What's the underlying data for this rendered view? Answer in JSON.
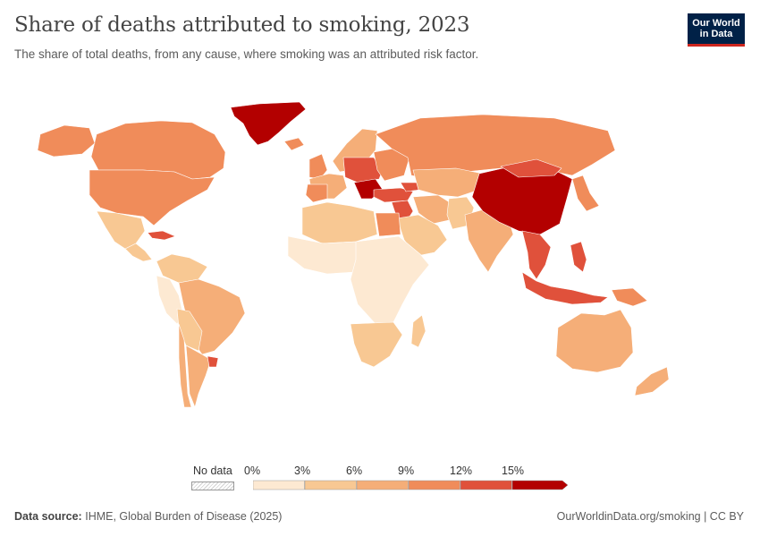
{
  "header": {
    "title": "Share of deaths attributed to smoking, 2023",
    "subtitle": "The share of total deaths, from any cause, where smoking was an attributed risk factor.",
    "logo_line1": "Our World",
    "logo_line2": "in Data"
  },
  "legend": {
    "no_data_label": "No data",
    "ticks": [
      "0%",
      "3%",
      "6%",
      "9%",
      "12%",
      "15%"
    ],
    "bins": [
      {
        "color": "#fde9d2"
      },
      {
        "color": "#f8c893"
      },
      {
        "color": "#f5ae78"
      },
      {
        "color": "#f08c5a"
      },
      {
        "color": "#e0513b"
      },
      {
        "color": "#b30000"
      }
    ]
  },
  "footer": {
    "source_label": "Data source:",
    "source_text": "IHME, Global Burden of Disease (2025)",
    "right_text": "OurWorldinData.org/smoking | CC BY"
  },
  "map_regions": [
    {
      "name": "greenland",
      "color": "#b30000"
    },
    {
      "name": "canada",
      "color": "#f08c5a"
    },
    {
      "name": "usa",
      "color": "#f08c5a"
    },
    {
      "name": "alaska",
      "color": "#f08c5a"
    },
    {
      "name": "mexico",
      "color": "#f8c893"
    },
    {
      "name": "central-america",
      "color": "#f8c893"
    },
    {
      "name": "cuba",
      "color": "#e0513b"
    },
    {
      "name": "colombia-venezuela",
      "color": "#f8c893"
    },
    {
      "name": "peru-ecuador",
      "color": "#fde9d2"
    },
    {
      "name": "brazil",
      "color": "#f5ae78"
    },
    {
      "name": "bolivia-paraguay",
      "color": "#f8c893"
    },
    {
      "name": "chile",
      "color": "#f5ae78"
    },
    {
      "name": "argentina",
      "color": "#f5ae78"
    },
    {
      "name": "uruguay",
      "color": "#e0513b"
    },
    {
      "name": "iceland",
      "color": "#f08c5a"
    },
    {
      "name": "scandinavia",
      "color": "#f5ae78"
    },
    {
      "name": "uk-ireland",
      "color": "#f08c5a"
    },
    {
      "name": "western-europe",
      "color": "#f5ae78"
    },
    {
      "name": "iberia",
      "color": "#f08c5a"
    },
    {
      "name": "central-europe",
      "color": "#e0513b"
    },
    {
      "name": "balkans",
      "color": "#b30000"
    },
    {
      "name": "eastern-europe",
      "color": "#f08c5a"
    },
    {
      "name": "russia",
      "color": "#f08c5a"
    },
    {
      "name": "turkey",
      "color": "#e0513b"
    },
    {
      "name": "levant",
      "color": "#e0513b"
    },
    {
      "name": "caucasus",
      "color": "#e0513b"
    },
    {
      "name": "kazakhstan-central-asia",
      "color": "#f5ae78"
    },
    {
      "name": "iran",
      "color": "#f5ae78"
    },
    {
      "name": "afghanistan-pakistan",
      "color": "#f8c893"
    },
    {
      "name": "arabia",
      "color": "#f8c893"
    },
    {
      "name": "north-africa",
      "color": "#f8c893"
    },
    {
      "name": "egypt",
      "color": "#f08c5a"
    },
    {
      "name": "west-africa",
      "color": "#fde9d2"
    },
    {
      "name": "central-east-africa",
      "color": "#fde9d2"
    },
    {
      "name": "southern-africa",
      "color": "#f8c893"
    },
    {
      "name": "madagascar",
      "color": "#f8c893"
    },
    {
      "name": "india",
      "color": "#f5ae78"
    },
    {
      "name": "china",
      "color": "#b30000"
    },
    {
      "name": "mongolia",
      "color": "#e0513b"
    },
    {
      "name": "korea-japan",
      "color": "#f08c5a"
    },
    {
      "name": "southeast-asia",
      "color": "#e0513b"
    },
    {
      "name": "philippines",
      "color": "#e0513b"
    },
    {
      "name": "indonesia",
      "color": "#e0513b"
    },
    {
      "name": "papua",
      "color": "#f08c5a"
    },
    {
      "name": "australia",
      "color": "#f5ae78"
    },
    {
      "name": "new-zealand",
      "color": "#f5ae78"
    }
  ]
}
